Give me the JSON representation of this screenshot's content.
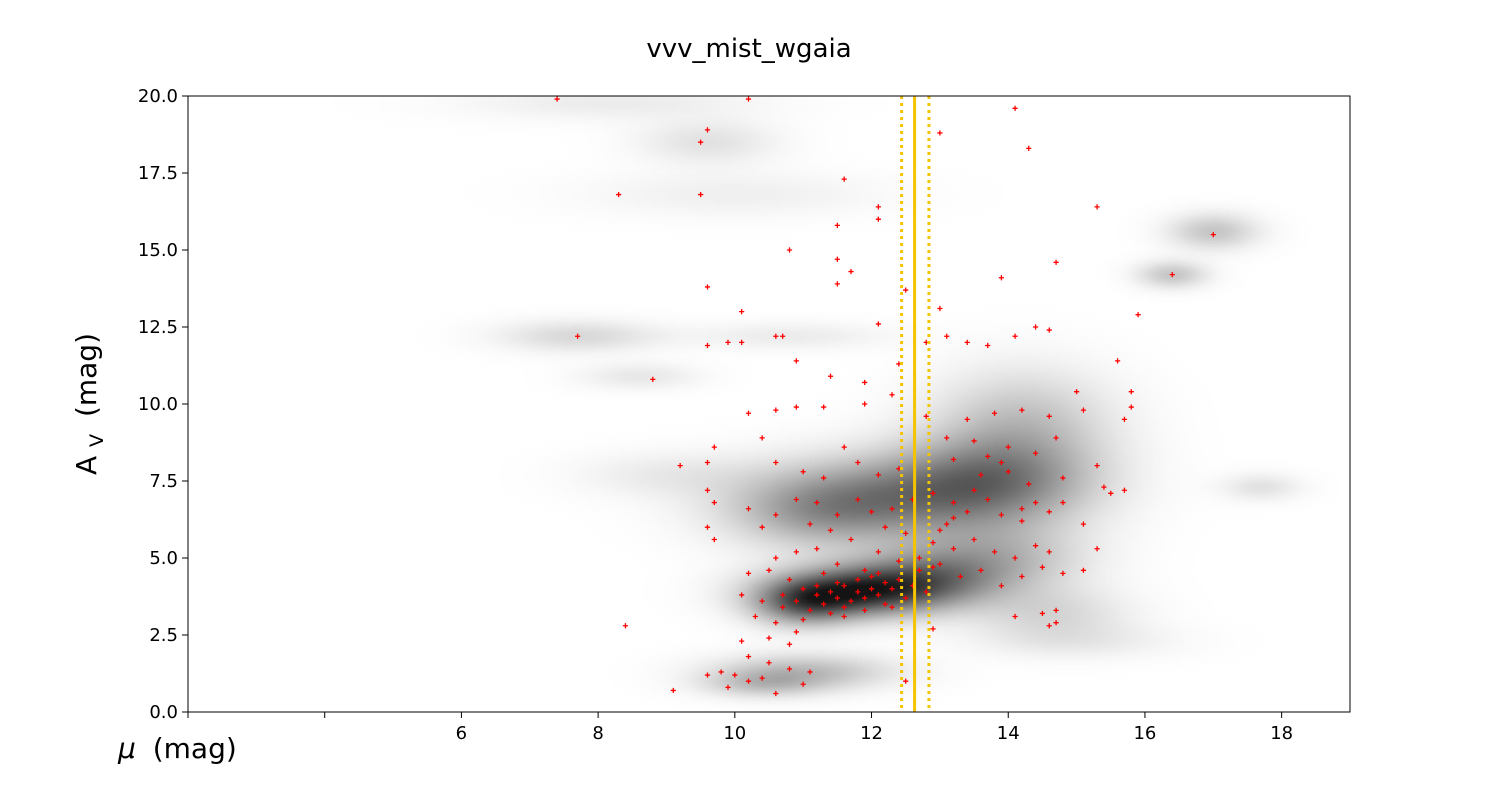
{
  "chart_data": {
    "type": "scatter",
    "title": "vvv_mist_wgaia",
    "xlabel": {
      "symbol": "μ",
      "unit": "(mag)"
    },
    "ylabel": {
      "base": "A",
      "subscript": "V",
      "unit": "(mag)"
    },
    "xlim": [
      2.0,
      19.0
    ],
    "ylim": [
      0.0,
      20.0
    ],
    "x_ticks": [
      2,
      4,
      6,
      8,
      10,
      12,
      14,
      16,
      18
    ],
    "x_tick_labels": [
      "",
      "",
      "6",
      "8",
      "10",
      "12",
      "14",
      "16",
      "18"
    ],
    "y_ticks": [
      0.0,
      2.5,
      5.0,
      7.5,
      10.0,
      12.5,
      15.0,
      17.5,
      20.0
    ],
    "y_tick_labels": [
      "0.0",
      "2.5",
      "5.0",
      "7.5",
      "10.0",
      "12.5",
      "15.0",
      "17.5",
      "20.0"
    ],
    "grid": false,
    "vertical_lines": [
      {
        "x": 12.63,
        "style": "solid",
        "color": "#f5c400"
      },
      {
        "x": 12.44,
        "style": "dotted",
        "color": "#f5c400"
      },
      {
        "x": 12.84,
        "style": "dotted",
        "color": "#f5c400"
      }
    ],
    "density_background": {
      "colormap": "greys",
      "blobs": [
        {
          "x": 11.8,
          "y": 3.9,
          "sx": 0.9,
          "sy": 0.55,
          "w": 1.0
        },
        {
          "x": 11.0,
          "y": 3.5,
          "sx": 0.5,
          "sy": 0.5,
          "w": 0.55
        },
        {
          "x": 12.8,
          "y": 4.4,
          "sx": 0.8,
          "sy": 0.6,
          "w": 0.45
        },
        {
          "x": 13.8,
          "y": 5.0,
          "sx": 0.9,
          "sy": 0.8,
          "w": 0.35
        },
        {
          "x": 12.3,
          "y": 7.0,
          "sx": 1.4,
          "sy": 0.9,
          "w": 0.55
        },
        {
          "x": 13.8,
          "y": 7.6,
          "sx": 1.0,
          "sy": 1.0,
          "w": 0.5
        },
        {
          "x": 11.2,
          "y": 6.4,
          "sx": 0.9,
          "sy": 0.8,
          "w": 0.3
        },
        {
          "x": 14.2,
          "y": 9.4,
          "sx": 0.9,
          "sy": 1.2,
          "w": 0.3
        },
        {
          "x": 11.0,
          "y": 1.3,
          "sx": 0.9,
          "sy": 0.4,
          "w": 0.35
        },
        {
          "x": 10.4,
          "y": 0.9,
          "sx": 0.6,
          "sy": 0.3,
          "w": 0.25
        },
        {
          "x": 14.6,
          "y": 3.2,
          "sx": 0.8,
          "sy": 0.6,
          "w": 0.2
        },
        {
          "x": 7.7,
          "y": 12.2,
          "sx": 0.8,
          "sy": 0.35,
          "w": 0.2
        },
        {
          "x": 9.6,
          "y": 18.5,
          "sx": 0.7,
          "sy": 0.5,
          "w": 0.15
        },
        {
          "x": 16.4,
          "y": 14.2,
          "sx": 0.35,
          "sy": 0.3,
          "w": 0.3
        },
        {
          "x": 17.0,
          "y": 15.6,
          "sx": 0.45,
          "sy": 0.4,
          "w": 0.3
        },
        {
          "x": 17.7,
          "y": 7.3,
          "sx": 0.4,
          "sy": 0.3,
          "w": 0.15
        },
        {
          "x": 8.6,
          "y": 10.9,
          "sx": 0.6,
          "sy": 0.3,
          "w": 0.12
        },
        {
          "x": 10.8,
          "y": 12.2,
          "sx": 1.0,
          "sy": 0.3,
          "w": 0.1
        },
        {
          "x": 9.0,
          "y": 7.7,
          "sx": 0.9,
          "sy": 0.5,
          "w": 0.1
        },
        {
          "x": 8.2,
          "y": 19.8,
          "sx": 1.5,
          "sy": 0.4,
          "w": 0.1
        },
        {
          "x": 10.0,
          "y": 16.8,
          "sx": 1.5,
          "sy": 0.5,
          "w": 0.08
        },
        {
          "x": 15.0,
          "y": 2.3,
          "sx": 1.0,
          "sy": 0.4,
          "w": 0.1
        }
      ]
    },
    "series": [
      {
        "marker": "+",
        "color": "#ff0000",
        "points": [
          [
            7.4,
            19.9
          ],
          [
            10.2,
            19.9
          ],
          [
            14.1,
            19.6
          ],
          [
            14.3,
            18.3
          ],
          [
            9.6,
            18.9
          ],
          [
            9.5,
            18.5
          ],
          [
            13.0,
            18.8
          ],
          [
            11.6,
            17.3
          ],
          [
            8.3,
            16.8
          ],
          [
            9.5,
            16.8
          ],
          [
            12.1,
            16.4
          ],
          [
            12.1,
            16.0
          ],
          [
            11.5,
            15.8
          ],
          [
            15.3,
            16.4
          ],
          [
            10.8,
            15.0
          ],
          [
            11.5,
            14.7
          ],
          [
            11.7,
            14.3
          ],
          [
            11.5,
            13.9
          ],
          [
            9.6,
            13.8
          ],
          [
            13.9,
            14.1
          ],
          [
            14.7,
            14.6
          ],
          [
            16.4,
            14.2
          ],
          [
            17.0,
            15.5
          ],
          [
            7.7,
            12.2
          ],
          [
            10.1,
            13.0
          ],
          [
            12.1,
            12.6
          ],
          [
            12.5,
            13.7
          ],
          [
            13.0,
            13.1
          ],
          [
            15.9,
            12.9
          ],
          [
            10.6,
            12.2
          ],
          [
            10.7,
            12.2
          ],
          [
            9.6,
            11.9
          ],
          [
            9.9,
            12.0
          ],
          [
            10.1,
            12.0
          ],
          [
            10.9,
            11.4
          ],
          [
            11.4,
            10.9
          ],
          [
            11.9,
            10.7
          ],
          [
            8.8,
            10.8
          ],
          [
            12.4,
            11.3
          ],
          [
            12.8,
            12.0
          ],
          [
            13.1,
            12.2
          ],
          [
            13.4,
            12.0
          ],
          [
            13.7,
            11.9
          ],
          [
            14.4,
            12.5
          ],
          [
            14.6,
            12.4
          ],
          [
            14.1,
            12.2
          ],
          [
            15.6,
            11.4
          ],
          [
            15.8,
            10.4
          ],
          [
            15.0,
            10.4
          ],
          [
            15.8,
            9.9
          ],
          [
            15.7,
            9.5
          ],
          [
            15.1,
            9.8
          ],
          [
            10.2,
            9.7
          ],
          [
            10.6,
            9.8
          ],
          [
            10.9,
            9.9
          ],
          [
            11.3,
            9.9
          ],
          [
            11.9,
            10.0
          ],
          [
            12.3,
            10.3
          ],
          [
            12.8,
            9.6
          ],
          [
            13.4,
            9.5
          ],
          [
            13.8,
            9.7
          ],
          [
            14.2,
            9.8
          ],
          [
            14.6,
            9.6
          ],
          [
            13.1,
            8.9
          ],
          [
            13.5,
            8.8
          ],
          [
            14.0,
            8.6
          ],
          [
            14.4,
            8.4
          ],
          [
            14.7,
            8.9
          ],
          [
            9.2,
            8.0
          ],
          [
            9.7,
            8.6
          ],
          [
            9.6,
            8.1
          ],
          [
            10.4,
            8.9
          ],
          [
            10.6,
            8.1
          ],
          [
            11.0,
            7.8
          ],
          [
            11.3,
            7.6
          ],
          [
            11.6,
            8.6
          ],
          [
            11.8,
            8.1
          ],
          [
            12.1,
            7.7
          ],
          [
            12.4,
            7.9
          ],
          [
            13.2,
            8.2
          ],
          [
            13.6,
            7.7
          ],
          [
            13.9,
            8.1
          ],
          [
            14.3,
            7.4
          ],
          [
            14.8,
            7.6
          ],
          [
            15.3,
            8.0
          ],
          [
            15.4,
            7.3
          ],
          [
            15.7,
            7.2
          ],
          [
            15.5,
            7.1
          ],
          [
            9.6,
            7.2
          ],
          [
            9.7,
            6.8
          ],
          [
            9.6,
            6.0
          ],
          [
            9.7,
            5.6
          ],
          [
            10.2,
            6.6
          ],
          [
            10.4,
            6.0
          ],
          [
            10.6,
            6.4
          ],
          [
            10.9,
            6.9
          ],
          [
            11.2,
            6.8
          ],
          [
            11.5,
            6.4
          ],
          [
            11.8,
            6.9
          ],
          [
            12.0,
            6.5
          ],
          [
            12.3,
            6.6
          ],
          [
            12.6,
            6.9
          ],
          [
            12.9,
            7.1
          ],
          [
            13.2,
            6.8
          ],
          [
            13.4,
            6.5
          ],
          [
            13.7,
            6.9
          ],
          [
            13.9,
            6.4
          ],
          [
            14.2,
            6.6
          ],
          [
            14.6,
            6.5
          ],
          [
            14.8,
            6.8
          ],
          [
            15.1,
            6.1
          ],
          [
            11.1,
            6.1
          ],
          [
            11.4,
            5.9
          ],
          [
            11.7,
            5.6
          ],
          [
            12.2,
            6.0
          ],
          [
            12.5,
            5.8
          ],
          [
            12.9,
            5.5
          ],
          [
            13.2,
            5.3
          ],
          [
            13.5,
            5.6
          ],
          [
            13.8,
            5.2
          ],
          [
            14.1,
            5.0
          ],
          [
            14.4,
            5.4
          ],
          [
            14.6,
            5.2
          ],
          [
            15.3,
            5.3
          ],
          [
            10.6,
            5.0
          ],
          [
            10.9,
            5.2
          ],
          [
            11.2,
            5.3
          ],
          [
            11.5,
            4.8
          ],
          [
            12.1,
            5.2
          ],
          [
            12.4,
            4.9
          ],
          [
            12.7,
            4.6
          ],
          [
            13.0,
            4.8
          ],
          [
            13.3,
            4.4
          ],
          [
            13.6,
            4.6
          ],
          [
            13.9,
            4.1
          ],
          [
            14.2,
            4.4
          ],
          [
            14.5,
            4.7
          ],
          [
            14.8,
            4.5
          ],
          [
            15.1,
            4.6
          ],
          [
            10.2,
            4.5
          ],
          [
            10.5,
            4.6
          ],
          [
            10.8,
            4.3
          ],
          [
            11.0,
            4.0
          ],
          [
            11.2,
            3.8
          ],
          [
            11.4,
            3.9
          ],
          [
            11.6,
            4.1
          ],
          [
            11.8,
            3.9
          ],
          [
            12.0,
            4.0
          ],
          [
            12.2,
            4.2
          ],
          [
            11.3,
            3.5
          ],
          [
            11.5,
            3.7
          ],
          [
            11.7,
            3.6
          ],
          [
            11.9,
            3.7
          ],
          [
            12.1,
            3.8
          ],
          [
            12.3,
            4.0
          ],
          [
            11.1,
            3.3
          ],
          [
            11.4,
            3.2
          ],
          [
            11.6,
            3.4
          ],
          [
            11.8,
            4.3
          ],
          [
            12.0,
            4.4
          ],
          [
            11.2,
            4.1
          ],
          [
            10.9,
            3.6
          ],
          [
            10.7,
            3.8
          ],
          [
            11.5,
            4.2
          ],
          [
            12.4,
            4.3
          ],
          [
            12.6,
            4.1
          ],
          [
            10.1,
            3.8
          ],
          [
            10.3,
            3.1
          ],
          [
            10.6,
            2.9
          ],
          [
            10.9,
            2.6
          ],
          [
            11.0,
            3.0
          ],
          [
            10.5,
            2.4
          ],
          [
            10.1,
            2.3
          ],
          [
            10.2,
            1.8
          ],
          [
            10.8,
            2.2
          ],
          [
            14.1,
            3.1
          ],
          [
            14.5,
            3.2
          ],
          [
            14.7,
            2.9
          ],
          [
            14.6,
            2.8
          ],
          [
            14.7,
            3.3
          ],
          [
            8.4,
            2.8
          ],
          [
            10.5,
            1.6
          ],
          [
            10.8,
            1.4
          ],
          [
            11.1,
            1.3
          ],
          [
            11.0,
            0.9
          ],
          [
            10.4,
            1.1
          ],
          [
            10.2,
            1.0
          ],
          [
            10.0,
            1.2
          ],
          [
            9.8,
            1.3
          ],
          [
            9.6,
            1.2
          ],
          [
            9.9,
            0.8
          ],
          [
            10.6,
            0.6
          ],
          [
            9.1,
            0.7
          ],
          [
            12.5,
            1.0
          ],
          [
            12.9,
            2.7
          ],
          [
            12.8,
            3.9
          ],
          [
            12.9,
            4.7
          ],
          [
            13.0,
            5.9
          ],
          [
            13.2,
            6.3
          ],
          [
            12.2,
            3.5
          ],
          [
            11.9,
            3.3
          ],
          [
            12.7,
            5.0
          ],
          [
            13.1,
            6.1
          ],
          [
            13.5,
            7.2
          ],
          [
            13.7,
            8.3
          ],
          [
            14.0,
            7.8
          ],
          [
            14.4,
            6.8
          ],
          [
            14.2,
            6.2
          ],
          [
            11.9,
            4.6
          ],
          [
            12.1,
            4.5
          ],
          [
            11.3,
            4.5
          ],
          [
            10.7,
            3.4
          ],
          [
            10.4,
            3.6
          ],
          [
            11.6,
            3.1
          ],
          [
            12.3,
            3.4
          ],
          [
            12.5,
            3.7
          ]
        ]
      }
    ]
  }
}
